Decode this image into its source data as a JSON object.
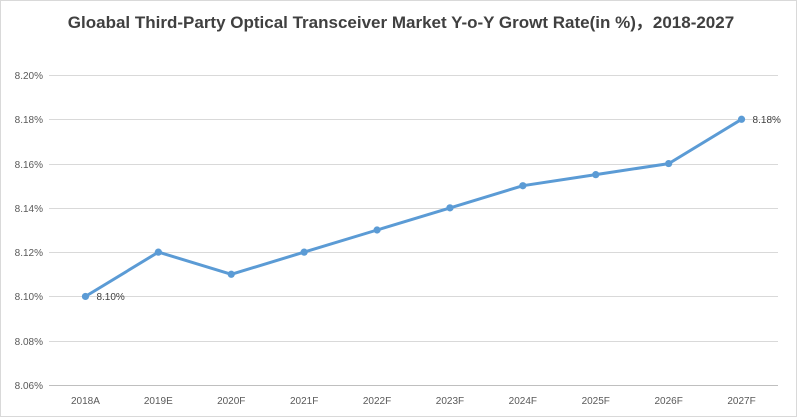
{
  "chart_data": {
    "type": "line",
    "title": "Gloabal Third-Party Optical Transceiver Market Y-o-Y Growt Rate(in %)，2018-2027",
    "xlabel": "",
    "ylabel": "",
    "categories": [
      "2018A",
      "2019E",
      "2020F",
      "2021F",
      "2022F",
      "2023F",
      "2024F",
      "2025F",
      "2026F",
      "2027F"
    ],
    "series": [
      {
        "values": [
          8.1,
          8.12,
          8.11,
          8.12,
          8.13,
          8.14,
          8.15,
          8.155,
          8.16,
          8.18
        ]
      }
    ],
    "ylim": [
      8.06,
      8.2
    ],
    "yticks": [
      8.06,
      8.08,
      8.1,
      8.12,
      8.14,
      8.16,
      8.18,
      8.2
    ],
    "ytick_labels": [
      "8.06%",
      "8.08%",
      "8.10%",
      "8.12%",
      "8.14%",
      "8.16%",
      "8.18%",
      "8.20%"
    ],
    "data_labels": [
      {
        "index": 0,
        "text": "8.10%"
      },
      {
        "index": 9,
        "text": "8.18%"
      }
    ],
    "line_color": "#5b9bd5",
    "grid": true,
    "legend": "none"
  }
}
